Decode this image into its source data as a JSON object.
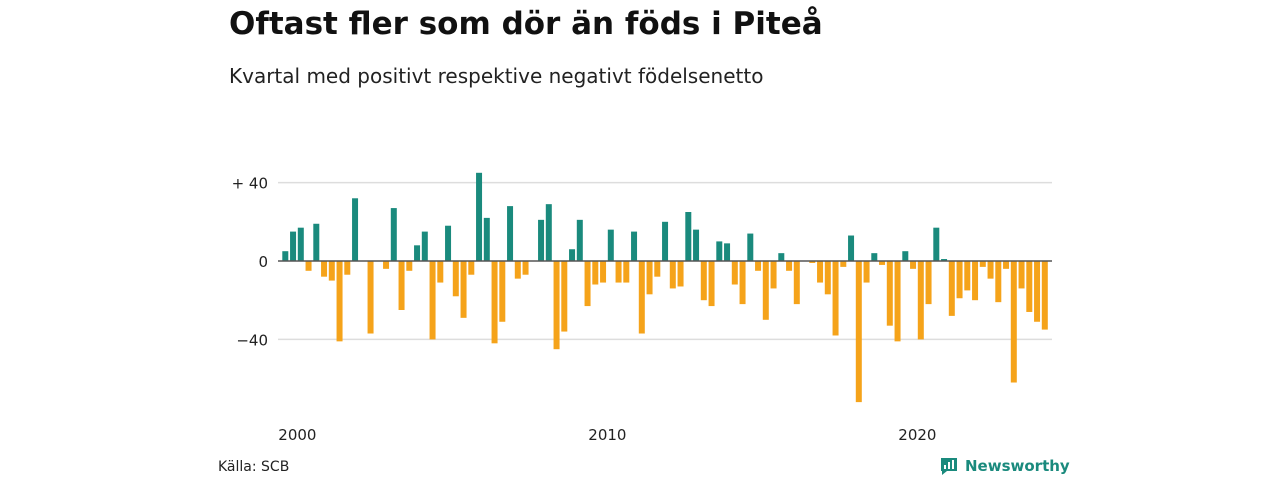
{
  "title": "Oftast fler som dör än föds i Piteå",
  "subtitle": "Kvartal med positivt respektive negativt födelsenetto",
  "source": "Källa: SCB",
  "brand": {
    "name": "Newsworthy",
    "icon": "newsworthy-logo-icon"
  },
  "colors": {
    "positive": "#1a8a7d",
    "negative": "#f5a31a",
    "grid": "#dddddd",
    "axis": "#555555",
    "text": "#222222"
  },
  "chart_data": {
    "type": "bar",
    "x_start": "2000 Q1",
    "x_unit": "quarter",
    "x_ticks": [
      {
        "label": "2000",
        "year": 2000
      },
      {
        "label": "2010",
        "year": 2010
      },
      {
        "label": "2020",
        "year": 2020
      }
    ],
    "y_ticks": [
      {
        "label": "+ 40",
        "value": 40
      },
      {
        "label": "0",
        "value": 0
      },
      {
        "label": "−40",
        "value": -40
      }
    ],
    "ylim": [
      -75,
      50
    ],
    "grid": true,
    "values": [
      5,
      15,
      17,
      -5,
      19,
      -8,
      -10,
      -41,
      -7,
      32,
      0,
      -37,
      0,
      -4,
      27,
      -25,
      -5,
      8,
      15,
      -40,
      -11,
      18,
      -18,
      -29,
      -7,
      45,
      22,
      -42,
      -31,
      28,
      -9,
      -7,
      0,
      21,
      29,
      -45,
      -36,
      6,
      21,
      -23,
      -12,
      -11,
      16,
      -11,
      -11,
      15,
      -37,
      -17,
      -8,
      20,
      -14,
      -13,
      25,
      16,
      -20,
      -23,
      10,
      9,
      -12,
      -22,
      14,
      -5,
      -30,
      -14,
      4,
      -5,
      -22,
      0,
      -1,
      -11,
      -17,
      -38,
      -3,
      13,
      -72,
      -11,
      4,
      -2,
      -33,
      -41,
      5,
      -4,
      -40,
      -22,
      17,
      1,
      -28,
      -19,
      -15,
      -20,
      -3,
      -9,
      -21,
      -4,
      -62,
      -14,
      -26,
      -31,
      -35
    ]
  }
}
